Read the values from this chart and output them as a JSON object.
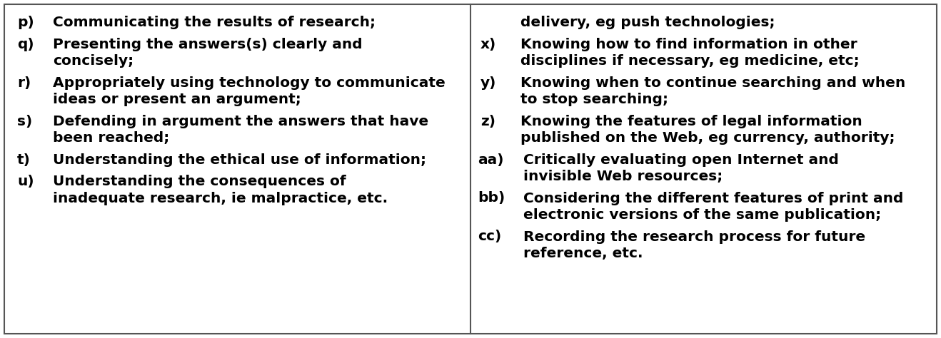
{
  "figsize": [
    13.18,
    4.74
  ],
  "dpi": 100,
  "bg_color": "#ffffff",
  "border_color": "#555555",
  "text_color": "#000000",
  "font_size": 14.5,
  "left_entries": [
    {
      "label": "p)",
      "text": "Communicating the results of research;"
    },
    {
      "label": "q)",
      "text": "Presenting the answers(s) clearly and\nconcisely;"
    },
    {
      "label": "r)",
      "text": "Appropriately using technology to communicate\nideas or present an argument;"
    },
    {
      "label": "s)",
      "text": "Defending in argument the answers that have\nbeen reached;"
    },
    {
      "label": "t)",
      "text": "Understanding the ethical use of information;"
    },
    {
      "label": "u)",
      "text": "Understanding the consequences of\ninadequate research, ie malpractice, etc."
    }
  ],
  "right_entries": [
    {
      "label": "",
      "text": "delivery, eg push technologies;"
    },
    {
      "label": "x)",
      "text": "Knowing how to find information in other\ndisciplines if necessary, eg medicine, etc;"
    },
    {
      "label": "y)",
      "text": "Knowing when to continue searching and when\nto stop searching;"
    },
    {
      "label": "z)",
      "text": "Knowing the features of legal information\npublished on the Web, eg currency, authority;"
    },
    {
      "label": "aa)",
      "text": "Critically evaluating open Internet and\ninvisible Web resources;"
    },
    {
      "label": "bb)",
      "text": "Considering the different features of print and\nelectronic versions of the same publication;"
    },
    {
      "label": "cc)",
      "text": "Recording the research process for future\nreference, etc."
    }
  ]
}
